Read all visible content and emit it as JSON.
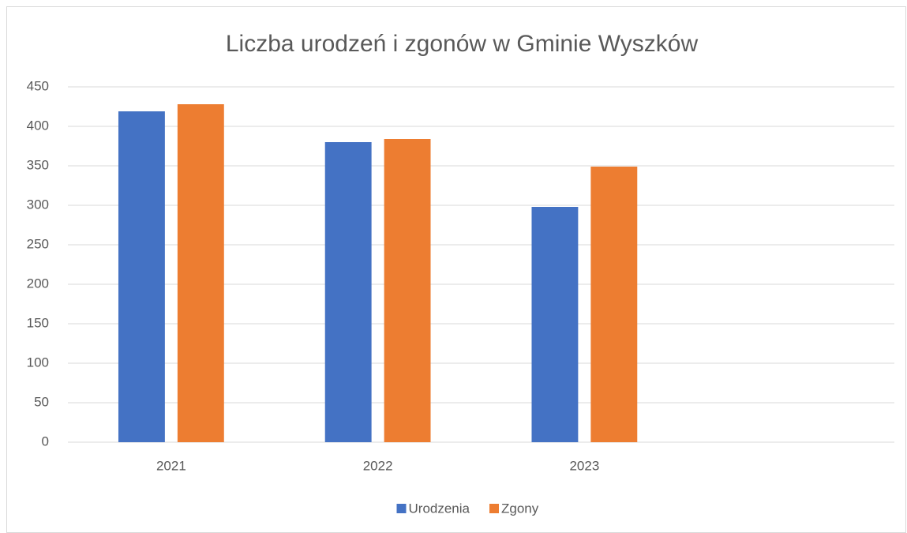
{
  "chart_data": {
    "type": "bar",
    "title": "Liczba urodzeń i zgonów w Gminie Wyszków",
    "categories": [
      "2021",
      "2022",
      "2023",
      null
    ],
    "series": [
      {
        "name": "Urodzenia",
        "color": "#4472c4",
        "values": [
          419,
          380,
          298,
          null
        ]
      },
      {
        "name": "Zgony",
        "color": "#ed7d31",
        "values": [
          428,
          384,
          349,
          null
        ]
      }
    ],
    "ylim": [
      0,
      450
    ],
    "yticks": [
      0,
      50,
      100,
      150,
      200,
      250,
      300,
      350,
      400,
      450
    ],
    "grid": true,
    "legend": "bottom"
  }
}
